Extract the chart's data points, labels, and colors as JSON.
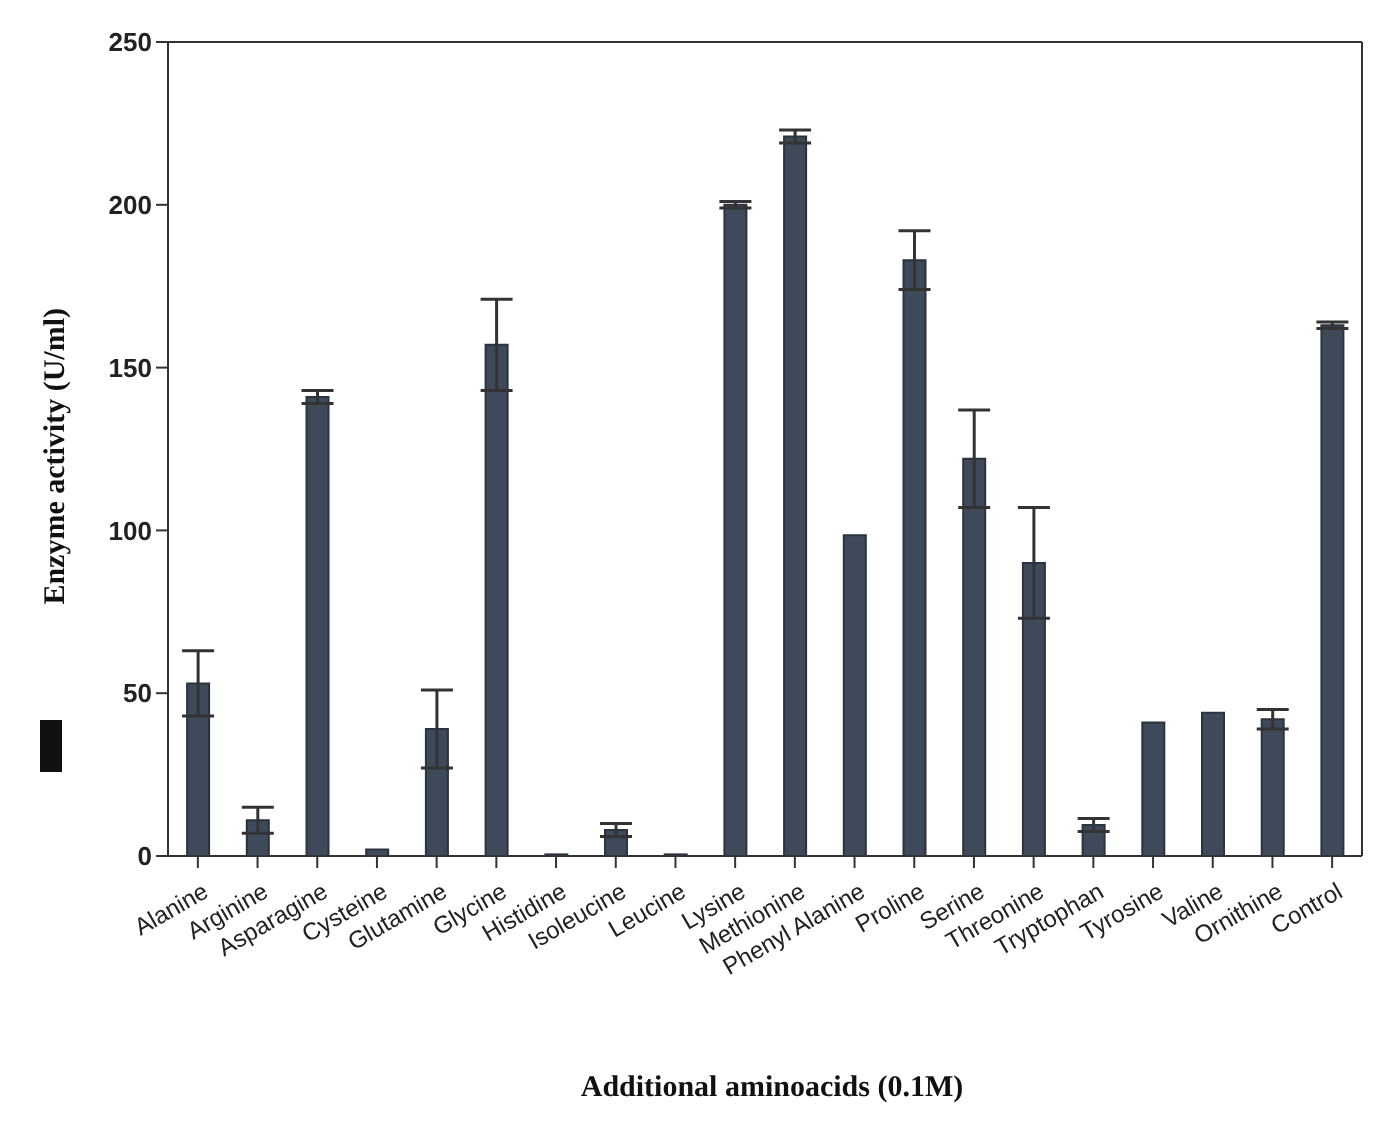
{
  "chart_data": {
    "type": "bar",
    "xlabel": "Additional aminoacids (0.1M)",
    "ylabel": "Enzyme activity (U/ml)",
    "categories": [
      "Alanine",
      "Arginine",
      "Asparagine",
      "Cysteine",
      "Glutamine",
      "Glycine",
      "Histidine",
      "Isoleucine",
      "Leucine",
      "Lysine",
      "Methionine",
      "Phenyl Alanine",
      "Proline",
      "Serine",
      "Threonine",
      "Tryptophan",
      "Tyrosine",
      "Valine",
      "Ornithine",
      "Control"
    ],
    "values": [
      53,
      11,
      141,
      2,
      39,
      157,
      0.5,
      8,
      0.5,
      200,
      221,
      98.5,
      183,
      122,
      90,
      9.5,
      41,
      44,
      42,
      163
    ],
    "errors": [
      10,
      4,
      2,
      null,
      12,
      14,
      null,
      2,
      null,
      1,
      2,
      null,
      9,
      15,
      17,
      2,
      null,
      null,
      3,
      1
    ],
    "color": "#3e4a5a",
    "ylim": [
      0,
      250
    ],
    "yticks": [
      0,
      50,
      100,
      150,
      200,
      250
    ],
    "grid": false,
    "legend": false
  }
}
